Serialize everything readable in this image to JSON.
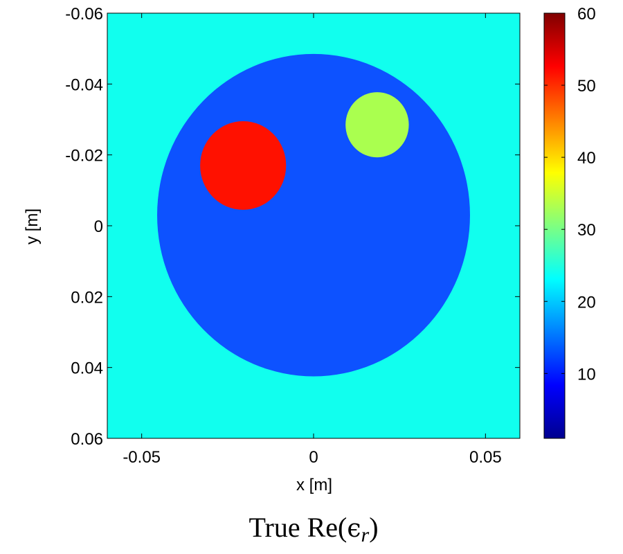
{
  "chart_data": {
    "type": "heatmap",
    "title": "",
    "caption": {
      "prefix": "True Re(",
      "symbol": "ϵ",
      "subscript": "r",
      "suffix": ")"
    },
    "xlabel": "x [m]",
    "ylabel": "y [m]",
    "xlim": [
      -0.06,
      0.06
    ],
    "ylim": [
      -0.06,
      0.06
    ],
    "y_axis_reversed": true,
    "xticks": [
      -0.05,
      0,
      0.05
    ],
    "xtick_labels": [
      "-0.05",
      "0",
      "0.05"
    ],
    "yticks": [
      -0.06,
      -0.04,
      -0.02,
      0,
      0.02,
      0.04,
      0.06
    ],
    "ytick_labels": [
      "-0.06",
      "-0.04",
      "-0.02",
      "0",
      "0.02",
      "0.04",
      "0.06"
    ],
    "colormap": "jet",
    "clim": [
      1,
      60
    ],
    "colorbar_ticks": [
      10,
      20,
      30,
      40,
      50,
      60
    ],
    "colorbar_tick_labels": [
      "10",
      "20",
      "30",
      "40",
      "50",
      "60"
    ],
    "grid": false,
    "regions": [
      {
        "name": "background",
        "shape": "fill",
        "value": 23
      },
      {
        "name": "large-circle",
        "shape": "circle",
        "cx": 0.0,
        "cy": -0.003,
        "r": 0.0455,
        "value": 12
      },
      {
        "name": "red-inclusion",
        "shape": "circle",
        "cx": -0.0205,
        "cy": -0.017,
        "r": 0.0125,
        "value": 53
      },
      {
        "name": "green-inclusion",
        "shape": "circle",
        "cx": 0.0185,
        "cy": -0.0285,
        "r": 0.0092,
        "value": 31
      }
    ]
  },
  "colors": {
    "background": "#11ffee",
    "large-circle": "#0d52ff",
    "red-inclusion": "#ff1100",
    "green-inclusion": "#aaff4f"
  }
}
